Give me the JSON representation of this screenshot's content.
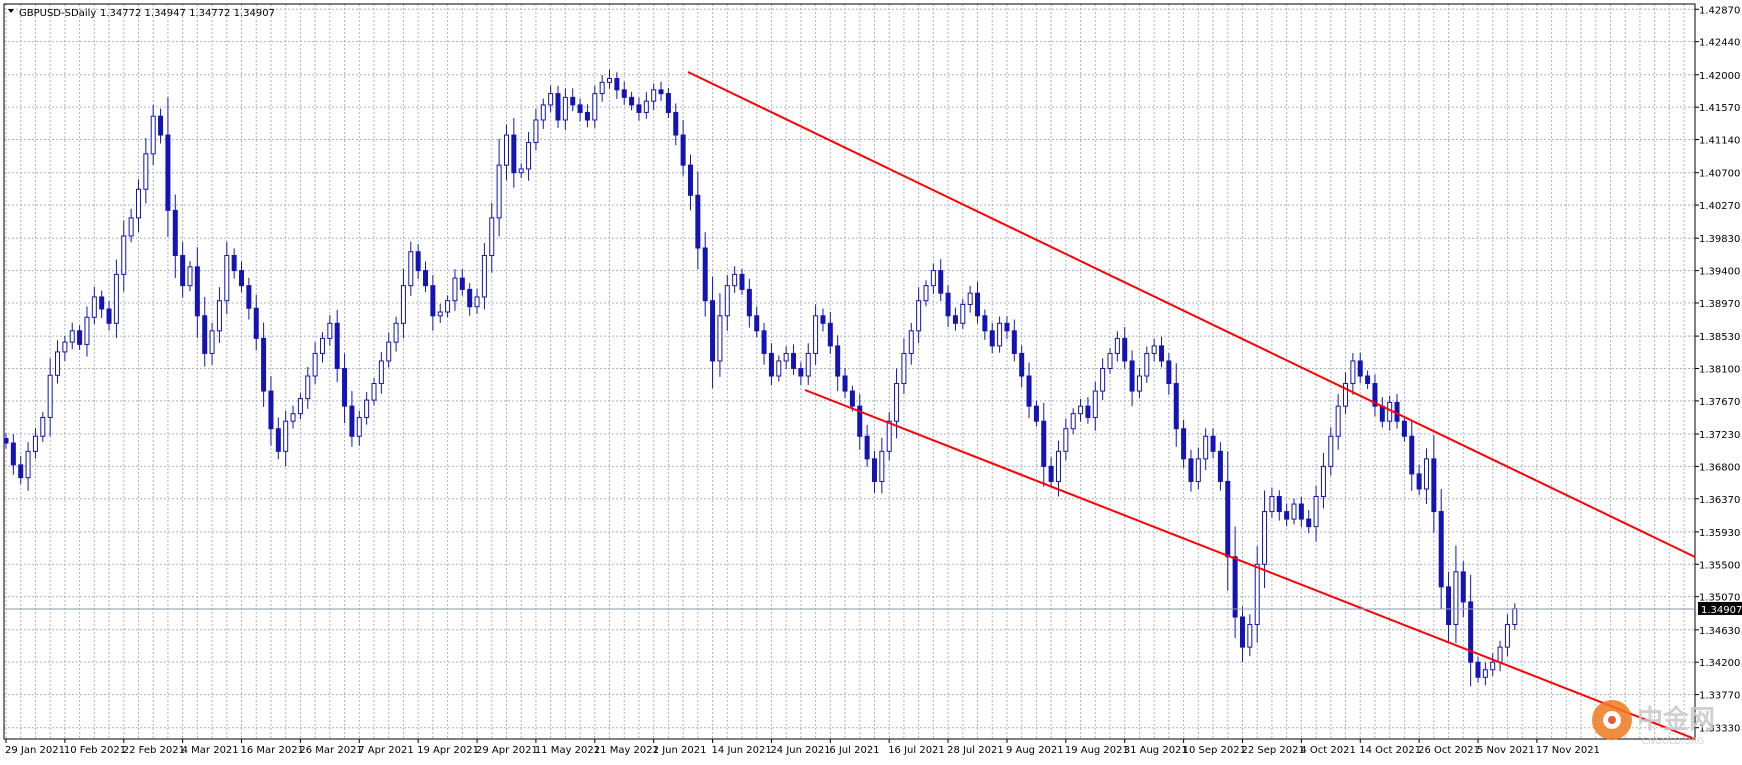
{
  "header": {
    "symbol": "GBPUSD-S",
    "timeframe": "Daily",
    "ohlc": "1.34772 1.34947 1.34772 1.34907"
  },
  "current_price": "1.34907",
  "watermark": {
    "brand": "中金网",
    "url": "CNGOLD.ORG"
  },
  "colors": {
    "background": "#ffffff",
    "grid": "#a9b4c2",
    "candle": "#1414b4",
    "trendline": "#ff0000",
    "price_line": "#8a9ab0",
    "price_tag": "#000000"
  },
  "chart_data": {
    "type": "candlestick",
    "title": "GBPUSD-S Daily",
    "ylim": [
      1.3318,
      1.4294
    ],
    "grid": true,
    "y_ticks": [
      "1.42870",
      "1.42440",
      "1.42000",
      "1.41570",
      "1.41140",
      "1.40700",
      "1.40270",
      "1.39830",
      "1.39400",
      "1.38970",
      "1.38530",
      "1.38100",
      "1.37670",
      "1.37230",
      "1.36800",
      "1.36370",
      "1.35930",
      "1.35500",
      "1.35070",
      "1.34630",
      "1.34200",
      "1.33770",
      "1.33330"
    ],
    "x_labels": [
      {
        "label": "29 Jan 2021",
        "index": 0
      },
      {
        "label": "10 Feb 2021",
        "index": 8
      },
      {
        "label": "22 Feb 2021",
        "index": 16
      },
      {
        "label": "4 Mar 2021",
        "index": 24
      },
      {
        "label": "16 Mar 2021",
        "index": 32
      },
      {
        "label": "26 Mar 2021",
        "index": 40
      },
      {
        "label": "7 Apr 2021",
        "index": 48
      },
      {
        "label": "19 Apr 2021",
        "index": 56
      },
      {
        "label": "29 Apr 2021",
        "index": 64
      },
      {
        "label": "11 May 2021",
        "index": 72
      },
      {
        "label": "21 May 2021",
        "index": 80
      },
      {
        "label": "2 Jun 2021",
        "index": 88
      },
      {
        "label": "14 Jun 2021",
        "index": 96
      },
      {
        "label": "24 Jun 2021",
        "index": 104
      },
      {
        "label": "6 Jul 2021",
        "index": 112
      },
      {
        "label": "16 Jul 2021",
        "index": 120
      },
      {
        "label": "28 Jul 2021",
        "index": 128
      },
      {
        "label": "9 Aug 2021",
        "index": 136
      },
      {
        "label": "19 Aug 2021",
        "index": 144
      },
      {
        "label": "31 Aug 2021",
        "index": 152
      },
      {
        "label": "10 Sep 2021",
        "index": 160
      },
      {
        "label": "22 Sep 2021",
        "index": 168
      },
      {
        "label": "4 Oct 2021",
        "index": 176
      },
      {
        "label": "14 Oct 2021",
        "index": 184
      },
      {
        "label": "26 Oct 2021",
        "index": 192
      },
      {
        "label": "5 Nov 2021",
        "index": 200
      },
      {
        "label": "17 Nov 2021",
        "index": 208
      }
    ],
    "closes": [
      1.3711,
      1.3682,
      1.3665,
      1.37,
      1.372,
      1.3745,
      1.3801,
      1.3832,
      1.3845,
      1.386,
      1.3842,
      1.3878,
      1.3905,
      1.3889,
      1.387,
      1.3935,
      1.3986,
      1.401,
      1.4048,
      1.4095,
      1.4145,
      1.412,
      1.402,
      1.396,
      1.392,
      1.3945,
      1.388,
      1.383,
      1.386,
      1.39,
      1.396,
      1.394,
      1.392,
      1.389,
      1.385,
      1.378,
      1.373,
      1.37,
      1.374,
      1.375,
      1.377,
      1.38,
      1.383,
      1.385,
      1.387,
      1.381,
      1.376,
      1.372,
      1.3745,
      1.3768,
      1.379,
      1.382,
      1.3845,
      1.387,
      1.392,
      1.3965,
      1.394,
      1.392,
      1.388,
      1.3885,
      1.39,
      1.393,
      1.3915,
      1.3892,
      1.3905,
      1.396,
      1.401,
      1.408,
      1.412,
      1.407,
      1.4075,
      1.411,
      1.414,
      1.416,
      1.4175,
      1.414,
      1.417,
      1.416,
      1.415,
      1.414,
      1.4175,
      1.419,
      1.4195,
      1.418,
      1.417,
      1.416,
      1.415,
      1.4165,
      1.418,
      1.4175,
      1.415,
      1.412,
      1.408,
      1.404,
      1.397,
      1.39,
      1.382,
      1.388,
      1.392,
      1.3935,
      1.3915,
      1.388,
      1.386,
      1.383,
      1.38,
      1.382,
      1.383,
      1.381,
      1.38,
      1.383,
      1.388,
      1.387,
      1.384,
      1.38,
      1.378,
      1.376,
      1.372,
      1.369,
      1.366,
      1.37,
      1.374,
      1.379,
      1.383,
      1.386,
      1.39,
      1.392,
      1.394,
      1.391,
      1.388,
      1.387,
      1.3895,
      1.391,
      1.388,
      1.386,
      1.384,
      1.387,
      1.386,
      1.383,
      1.38,
      1.376,
      1.374,
      1.368,
      1.366,
      1.37,
      1.373,
      1.375,
      1.376,
      1.3745,
      1.378,
      1.381,
      1.383,
      1.385,
      1.382,
      1.378,
      1.38,
      1.383,
      1.384,
      1.382,
      1.379,
      1.373,
      1.369,
      1.366,
      1.369,
      1.372,
      1.37,
      1.366,
      1.356,
      1.348,
      1.344,
      1.347,
      1.355,
      1.362,
      1.364,
      1.362,
      1.361,
      1.363,
      1.361,
      1.36,
      1.364,
      1.368,
      1.372,
      1.376,
      1.379,
      1.382,
      1.38,
      1.379,
      1.376,
      1.374,
      1.3765,
      1.374,
      1.372,
      1.367,
      1.365,
      1.369,
      1.362,
      1.352,
      1.347,
      1.354,
      1.35,
      1.342,
      1.34,
      1.341,
      1.342,
      1.344,
      1.347,
      1.3491
    ]
  }
}
